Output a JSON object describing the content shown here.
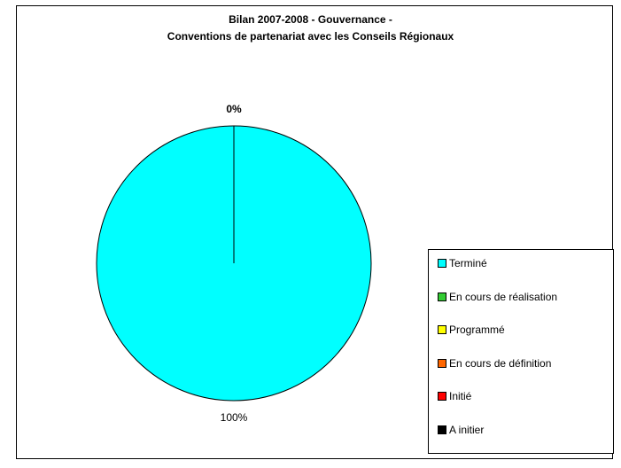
{
  "chart_data": {
    "type": "pie",
    "title_lines": [
      "Bilan 2007-2008 - Gouvernance -",
      "Conventions de partenariat avec les Conseils Régionaux"
    ],
    "categories": [
      "Terminé",
      "En cours de réalisation",
      "Programmé",
      "En cours de définition",
      "Initié",
      "A initier"
    ],
    "values": [
      100,
      0,
      0,
      0,
      0,
      0
    ],
    "colors": [
      "#00ffff",
      "#33cc33",
      "#ffff00",
      "#ff6600",
      "#ff0000",
      "#000000"
    ],
    "data_labels": [
      {
        "category": "Terminé",
        "text": "100%"
      },
      {
        "category": "others",
        "text": "0%"
      }
    ],
    "legend_position": "right"
  }
}
